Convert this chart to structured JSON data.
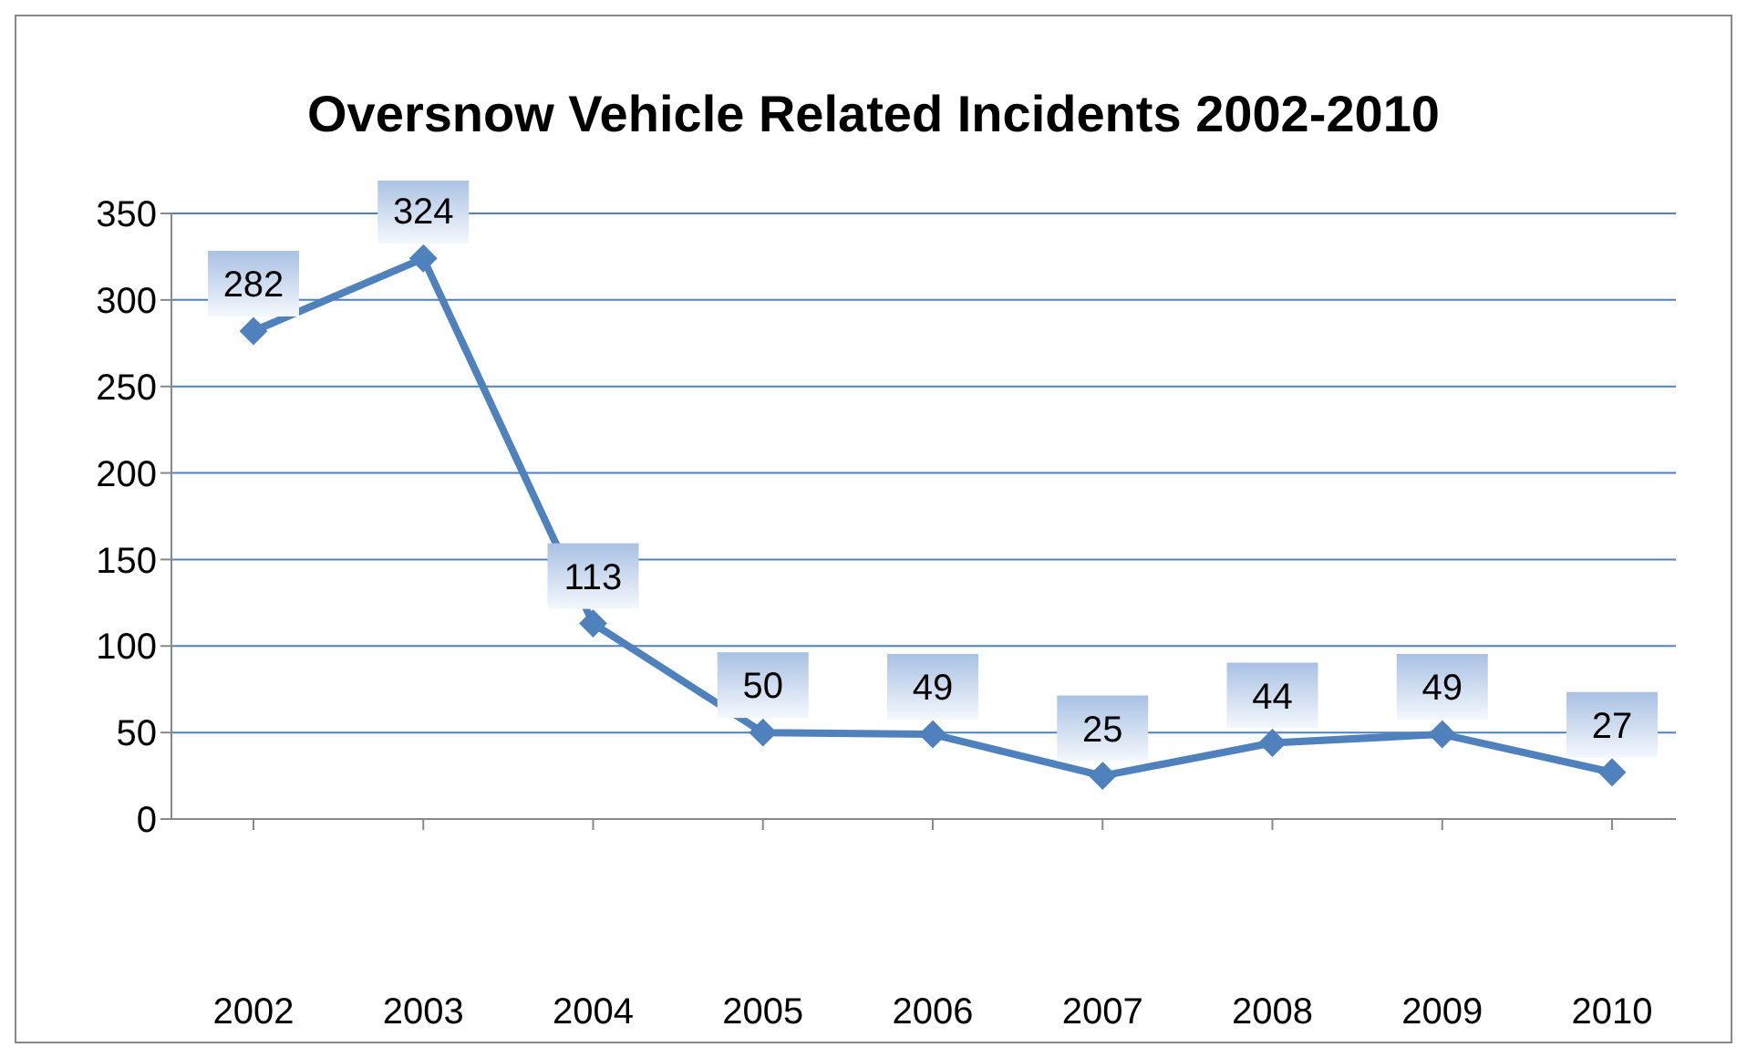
{
  "chart_data": {
    "type": "line",
    "title": "Oversnow Vehicle Related Incidents 2002-2010",
    "categories": [
      "2002",
      "2003",
      "2004",
      "2005",
      "2006",
      "2007",
      "2008",
      "2009",
      "2010"
    ],
    "series": [
      {
        "color": "#4f81bd",
        "values": [
          282,
          324,
          113,
          50,
          49,
          25,
          44,
          49,
          27
        ]
      }
    ],
    "ylim": [
      0,
      350
    ],
    "yticks": [
      0,
      50,
      100,
      150,
      200,
      250,
      300,
      350
    ],
    "grid": "y",
    "legend": false,
    "marker": "diamond",
    "line_style": "solid",
    "data_labels": true
  }
}
